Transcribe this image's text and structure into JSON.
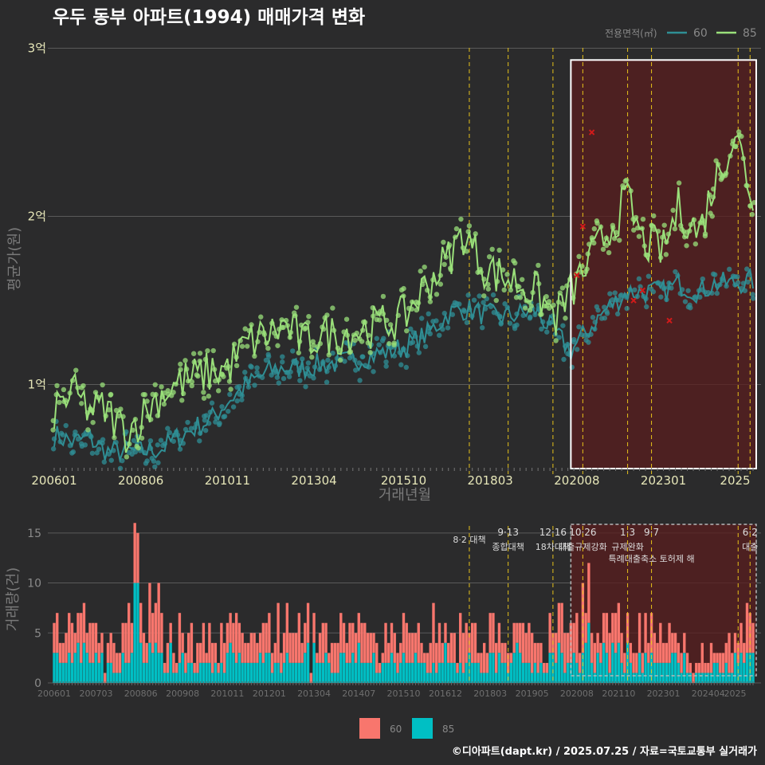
{
  "title": "우두 동부 아파트(1994) 매매가격 변화",
  "footer": "©디아파트(dapt.kr) / 2025.07.25 / 자료=국토교통부 실거래가",
  "colors": {
    "bg": "#2b2b2c",
    "s60": "#2f8f95",
    "s85": "#9ae07a",
    "bar60": "#f8766d",
    "bar85": "#00bfc4",
    "policy": "#e6c21a",
    "highlight": "#5a1e1e",
    "outlier": "#d11a1a"
  },
  "chart_data": [
    {
      "type": "line",
      "title": "우두 동부 아파트(1994) 매매가격 변화",
      "xlabel": "거래년월",
      "ylabel": "평균가(원)",
      "xlim": [
        "2006-01",
        "2025-07"
      ],
      "ylim": [
        0.5,
        3.05
      ],
      "y_unit": "억",
      "x_ticks": [
        "200601",
        "200806",
        "201011",
        "201304",
        "201510",
        "201803",
        "202008",
        "202301",
        "2025"
      ],
      "y_ticks": [
        {
          "value": 1,
          "label": "1억"
        },
        {
          "value": 2,
          "label": "2억"
        },
        {
          "value": 3,
          "label": "3억"
        }
      ],
      "legend_title": "전용면적(㎡)",
      "legend_position": "top-right",
      "grid": true,
      "highlight_region": {
        "from": "2020-06",
        "to": "2025-07",
        "y_from": 0.5,
        "y_to": 2.93
      },
      "series": [
        {
          "name": "60",
          "anchors": [
            [
              "2006-01",
              0.7
            ],
            [
              "2006-07",
              0.66
            ],
            [
              "2007-01",
              0.68
            ],
            [
              "2007-06",
              0.6
            ],
            [
              "2008-01",
              0.6
            ],
            [
              "2008-06",
              0.6
            ],
            [
              "2009-01",
              0.62
            ],
            [
              "2009-06",
              0.68
            ],
            [
              "2010-01",
              0.75
            ],
            [
              "2010-06",
              0.8
            ],
            [
              "2010-11",
              0.9
            ],
            [
              "2011-06",
              1.0
            ],
            [
              "2012-01",
              1.08
            ],
            [
              "2012-06",
              1.1
            ],
            [
              "2013-01",
              1.1
            ],
            [
              "2013-06",
              1.12
            ],
            [
              "2014-01",
              1.13
            ],
            [
              "2014-06",
              1.15
            ],
            [
              "2015-01",
              1.18
            ],
            [
              "2015-10",
              1.22
            ],
            [
              "2016-06",
              1.3
            ],
            [
              "2017-01",
              1.42
            ],
            [
              "2017-06",
              1.45
            ],
            [
              "2018-01",
              1.42
            ],
            [
              "2018-06",
              1.4
            ],
            [
              "2019-01",
              1.42
            ],
            [
              "2019-06",
              1.44
            ],
            [
              "2020-01",
              1.3
            ],
            [
              "2020-06",
              1.2
            ],
            [
              "2021-01",
              1.35
            ],
            [
              "2021-06",
              1.45
            ],
            [
              "2022-01",
              1.55
            ],
            [
              "2022-06",
              1.55
            ],
            [
              "2023-01",
              1.55
            ],
            [
              "2023-06",
              1.6
            ],
            [
              "2024-01",
              1.55
            ],
            [
              "2024-06",
              1.6
            ],
            [
              "2025-01",
              1.6
            ],
            [
              "2025-07",
              1.62
            ]
          ]
        },
        {
          "name": "85",
          "anchors": [
            [
              "2006-01",
              0.85
            ],
            [
              "2006-07",
              0.95
            ],
            [
              "2007-01",
              0.85
            ],
            [
              "2007-06",
              0.85
            ],
            [
              "2008-01",
              0.72
            ],
            [
              "2008-06",
              0.8
            ],
            [
              "2009-01",
              0.95
            ],
            [
              "2009-06",
              1.0
            ],
            [
              "2010-01",
              1.05
            ],
            [
              "2010-06",
              1.08
            ],
            [
              "2010-11",
              1.1
            ],
            [
              "2011-06",
              1.25
            ],
            [
              "2012-01",
              1.3
            ],
            [
              "2012-06",
              1.35
            ],
            [
              "2013-01",
              1.25
            ],
            [
              "2013-06",
              1.3
            ],
            [
              "2014-01",
              1.3
            ],
            [
              "2014-06",
              1.32
            ],
            [
              "2015-01",
              1.35
            ],
            [
              "2015-10",
              1.4
            ],
            [
              "2016-06",
              1.6
            ],
            [
              "2017-01",
              1.75
            ],
            [
              "2017-06",
              1.9
            ],
            [
              "2018-01",
              1.7
            ],
            [
              "2018-06",
              1.65
            ],
            [
              "2019-01",
              1.6
            ],
            [
              "2019-06",
              1.55
            ],
            [
              "2020-01",
              1.4
            ],
            [
              "2020-06",
              1.55
            ],
            [
              "2021-01",
              1.75
            ],
            [
              "2021-06",
              1.9
            ],
            [
              "2022-01",
              2.1
            ],
            [
              "2022-06",
              1.85
            ],
            [
              "2023-01",
              1.8
            ],
            [
              "2023-06",
              2.05
            ],
            [
              "2024-01",
              1.9
            ],
            [
              "2024-06",
              2.2
            ],
            [
              "2025-01",
              2.5
            ],
            [
              "2025-07",
              2.1
            ]
          ]
        }
      ]
    },
    {
      "type": "bar",
      "xlabel": "",
      "ylabel": "거래량(건)",
      "ylim": [
        0,
        16.5
      ],
      "stacked": true,
      "y_ticks": [
        0,
        5,
        10,
        15
      ],
      "x_ticks": [
        "200601",
        "200703",
        "200806",
        "200908",
        "201011",
        "201201",
        "201304",
        "201407",
        "201510",
        "201612",
        "201803",
        "201905",
        "202008",
        "202110",
        "202301",
        "202404",
        "2025"
      ],
      "legend_position": "bottom",
      "series": [
        {
          "name": "60"
        },
        {
          "name": "85"
        }
      ],
      "highlight_region": {
        "from": "2020-06",
        "to": "2025-07"
      },
      "notable_values": [
        {
          "x": "2008-04",
          "total": 16
        },
        {
          "x": "2008-05",
          "total": 15
        }
      ]
    }
  ],
  "policies": [
    {
      "date": "2017-08",
      "label_num": "",
      "label_text": "8·2 대책",
      "row": 0
    },
    {
      "date": "2018-09",
      "label_num": "9·13",
      "label_text": "종합대책",
      "row": 1
    },
    {
      "date": "2019-12",
      "label_num": "12·16",
      "label_text": "18차대책",
      "row": 1
    },
    {
      "date": "2020-10",
      "label_num": "10·26",
      "label_text": "대출규제강화",
      "row": 2
    },
    {
      "date": "2022-01",
      "label_num": "1·3",
      "label_text": "규제완화",
      "row": 2
    },
    {
      "date": "2022-09",
      "label_num": "9·7",
      "label_text": "특례대출축소 토허제 해",
      "row": 3
    },
    {
      "date": "2025-02",
      "label_num": "",
      "label_text": "",
      "row": 0
    },
    {
      "date": "2025-06",
      "label_num": "6·2",
      "label_text": "대출",
      "row": 2
    }
  ]
}
